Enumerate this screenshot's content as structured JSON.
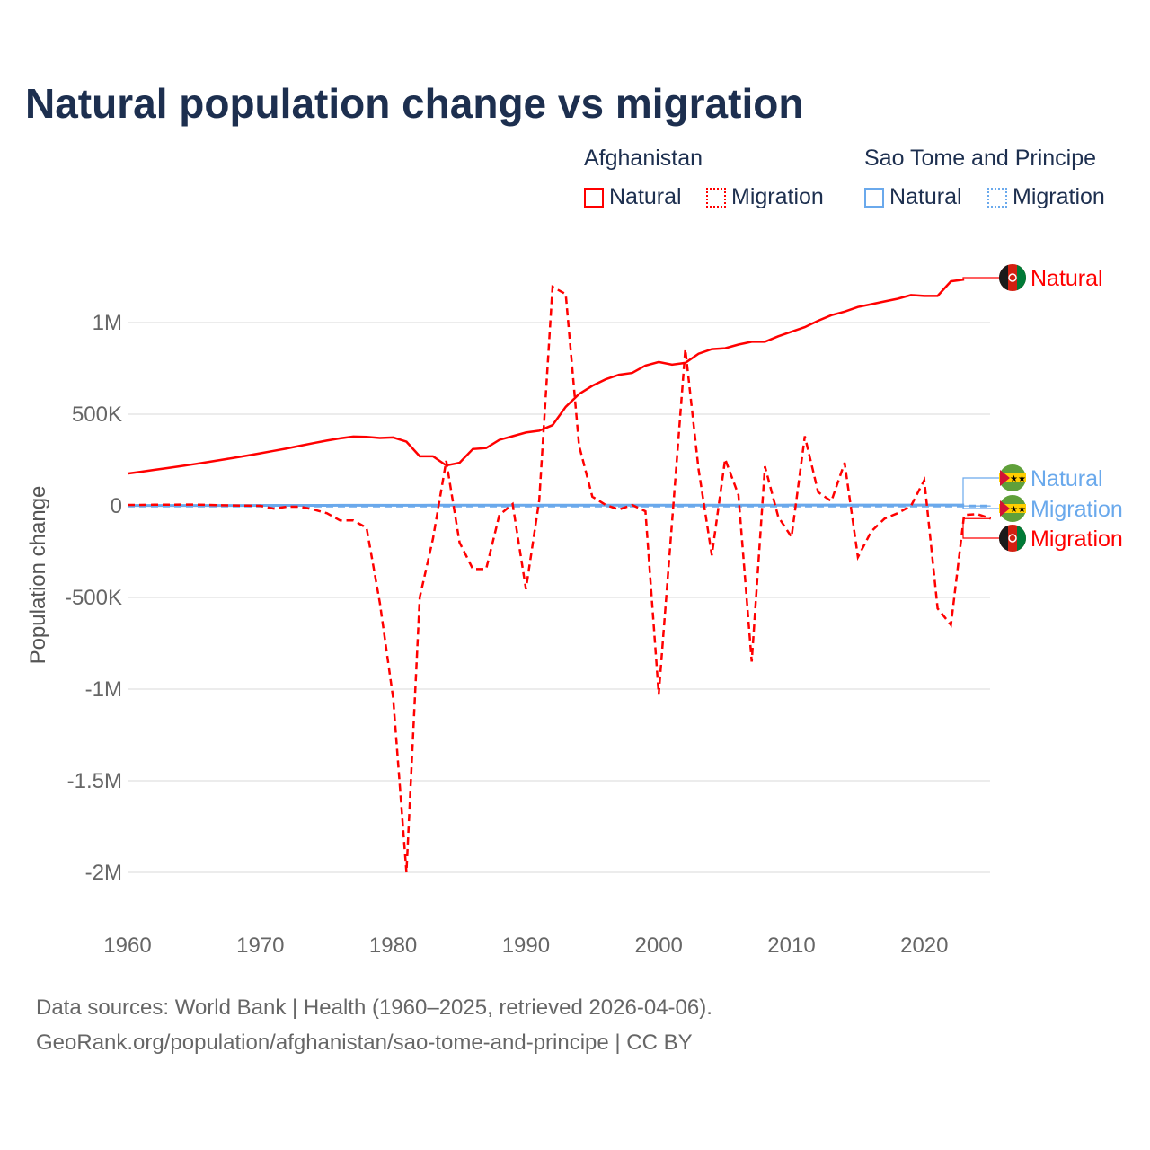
{
  "chart_data": {
    "type": "line",
    "title": "Natural population change vs migration",
    "ylabel": "Population change",
    "xlabel": "",
    "xlim": [
      1960,
      2025
    ],
    "ylim": [
      -2100000,
      1350000
    ],
    "x_ticks": [
      1960,
      1970,
      1980,
      1990,
      2000,
      2010,
      2020
    ],
    "y_ticks": [
      {
        "v": 1000000,
        "label": "1M"
      },
      {
        "v": 500000,
        "label": "500K"
      },
      {
        "v": 0,
        "label": "0"
      },
      {
        "v": -500000,
        "label": "-500K"
      },
      {
        "v": -1000000,
        "label": "-1M"
      },
      {
        "v": -1500000,
        "label": "-1.5M"
      },
      {
        "v": -2000000,
        "label": "-2M"
      }
    ],
    "grid": true,
    "legend_position": "top-right",
    "legend_groups": [
      {
        "name": "Afghanistan",
        "items": [
          "Natural",
          "Migration"
        ]
      },
      {
        "name": "Sao Tome and Principe",
        "items": [
          "Natural",
          "Migration"
        ]
      }
    ],
    "series": [
      {
        "country": "Afghanistan",
        "name": "Natural",
        "color": "#ff0000",
        "dash": false,
        "start": 1960,
        "values": [
          176000,
          186000,
          196000,
          206000,
          216000,
          227000,
          238000,
          250000,
          262000,
          274000,
          287000,
          300000,
          313000,
          328000,
          342000,
          356000,
          368000,
          378000,
          376000,
          370000,
          373000,
          350000,
          270000,
          270000,
          220000,
          235000,
          310000,
          315000,
          360000,
          380000,
          400000,
          410000,
          440000,
          540000,
          610000,
          655000,
          690000,
          715000,
          725000,
          765000,
          785000,
          770000,
          780000,
          830000,
          855000,
          860000,
          880000,
          895000,
          895000,
          925000,
          950000,
          975000,
          1010000,
          1040000,
          1060000,
          1085000,
          1100000,
          1115000,
          1130000,
          1150000,
          1145000,
          1145000,
          1225000,
          1235000
        ]
      },
      {
        "country": "Afghanistan",
        "name": "Migration",
        "color": "#ff0000",
        "dash": true,
        "start": 1960,
        "values": [
          5000,
          5000,
          6000,
          6000,
          7000,
          7000,
          5000,
          3000,
          2000,
          1000,
          0,
          -15000,
          -5000,
          -5000,
          -20000,
          -40000,
          -80000,
          -80000,
          -120000,
          -530000,
          -1050000,
          -2000000,
          -500000,
          -180000,
          245000,
          -200000,
          -345000,
          -345000,
          -50000,
          10000,
          -455000,
          30000,
          1195000,
          1155000,
          330000,
          50000,
          5000,
          -20000,
          5000,
          -30000,
          -1030000,
          -90000,
          855000,
          200000,
          -270000,
          255000,
          60000,
          -850000,
          215000,
          -60000,
          -170000,
          380000,
          75000,
          25000,
          235000,
          -280000,
          -140000,
          -70000,
          -40000,
          0,
          140000,
          -560000,
          -650000,
          -50000,
          -45000,
          -70000
        ]
      },
      {
        "country": "Sao Tome and Principe",
        "name": "Natural",
        "color": "#6aa9ec",
        "dash": false,
        "start": 1960,
        "values": [
          2000,
          2000,
          2000,
          2000,
          2000,
          2000,
          2000,
          2000,
          2000,
          2000,
          2500,
          2500,
          2500,
          2500,
          2500,
          2500,
          3000,
          3000,
          3000,
          3000,
          3000,
          3000,
          3000,
          3500,
          3500,
          3500,
          3500,
          3500,
          3500,
          3500,
          4000,
          4000,
          4000,
          4000,
          4000,
          4000,
          4000,
          4000,
          4000,
          4000,
          4000,
          4000,
          4000,
          4000,
          4000,
          4000,
          4000,
          4000,
          4000,
          4000,
          4500,
          4500,
          4500,
          4500,
          4500,
          4500,
          4500,
          4500,
          4500,
          4500,
          4500,
          4500,
          4500,
          4500
        ]
      },
      {
        "country": "Sao Tome and Principe",
        "name": "Migration",
        "color": "#6aa9ec",
        "dash": true,
        "start": 1960,
        "values": [
          -1000,
          -1000,
          -1000,
          -1000,
          -1000,
          -1000,
          -1000,
          -1000,
          -1000,
          -1000,
          -1000,
          -1000,
          -1000,
          -1000,
          -1000,
          -1000,
          -1000,
          -1000,
          -1000,
          -1000,
          -1000,
          -1000,
          -1000,
          -1000,
          -1000,
          -1000,
          -1000,
          -1000,
          -1000,
          -1000,
          -1000,
          -1000,
          -1000,
          -1000,
          -1000,
          -1000,
          -1000,
          -1000,
          -1000,
          -1000,
          -1000,
          -1000,
          -1000,
          -1000,
          -1000,
          -1000,
          -1000,
          -1000,
          -1000,
          -1000,
          -1000,
          -1000,
          -1000,
          -1000,
          -1000,
          -1000,
          -1000,
          -1000,
          -1000,
          -1000,
          -1000,
          -1000,
          -1000,
          -1000,
          -1000,
          -1000
        ]
      }
    ],
    "end_labels": [
      {
        "text": "Natural",
        "color": "#ff0000",
        "flag": "afghanistan"
      },
      {
        "text": "Natural",
        "color": "#6aa9ec",
        "flag": "sao-tome"
      },
      {
        "text": "Migration",
        "color": "#6aa9ec",
        "flag": "sao-tome"
      },
      {
        "text": "Migration",
        "color": "#ff0000",
        "flag": "afghanistan"
      }
    ]
  },
  "footer": {
    "line1": "Data sources: World Bank | Health (1960–2025, retrieved 2026-04-06).",
    "line2": "GeoRank.org/population/afghanistan/sao-tome-and-principe | CC BY"
  }
}
